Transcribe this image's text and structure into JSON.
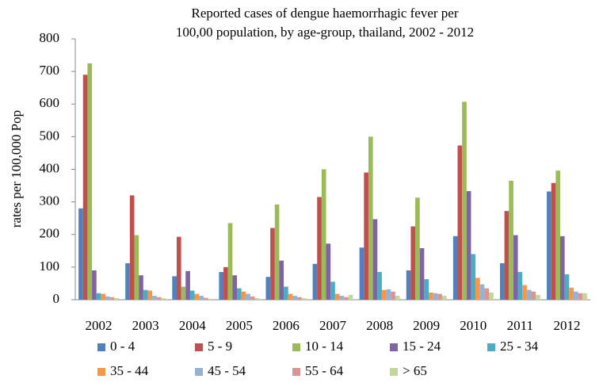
{
  "chart_data": {
    "type": "bar",
    "title": [
      "Reported cases of dengue haemorrhagic fever per",
      "100,00 population, by age-group, thailand, 2002 - 2012"
    ],
    "ylabel": "rates per 100,000 Pop",
    "categories": [
      "2002",
      "2003",
      "2004",
      "2005",
      "2006",
      "2007",
      "2008",
      "2009",
      "2010",
      "2011",
      "2012"
    ],
    "ylim": [
      0,
      800
    ],
    "yticks": [
      0,
      100,
      200,
      300,
      400,
      500,
      600,
      700,
      800
    ],
    "grid": false,
    "legend": "bottom",
    "series": [
      {
        "name": "0 - 4",
        "color": "#4f81bd",
        "values": [
          280,
          112,
          72,
          85,
          70,
          110,
          160,
          90,
          195,
          112,
          332
        ]
      },
      {
        "name": "5 - 9",
        "color": "#c0504d",
        "values": [
          690,
          320,
          193,
          100,
          220,
          315,
          390,
          225,
          473,
          272,
          358
        ]
      },
      {
        "name": "10 - 14",
        "color": "#9bbb59",
        "values": [
          725,
          198,
          40,
          235,
          292,
          400,
          500,
          313,
          607,
          365,
          396
        ]
      },
      {
        "name": "15 - 24",
        "color": "#8064a2",
        "values": [
          90,
          75,
          88,
          75,
          120,
          172,
          247,
          158,
          333,
          198,
          195
        ]
      },
      {
        "name": "25 - 34",
        "color": "#4bacc6",
        "values": [
          20,
          30,
          28,
          35,
          40,
          55,
          85,
          63,
          140,
          85,
          78
        ]
      },
      {
        "name": "35 - 44",
        "color": "#f79646",
        "values": [
          18,
          28,
          18,
          25,
          18,
          18,
          30,
          22,
          67,
          45,
          37
        ]
      },
      {
        "name": "45 - 54",
        "color": "#95b3d7",
        "values": [
          10,
          12,
          12,
          18,
          12,
          12,
          32,
          20,
          47,
          30,
          25
        ]
      },
      {
        "name": "55 - 64",
        "color": "#da9694",
        "values": [
          8,
          8,
          6,
          10,
          8,
          8,
          25,
          18,
          35,
          25,
          20
        ]
      },
      {
        "name": "> 65",
        "color": "#c3d69b",
        "values": [
          5,
          5,
          3,
          5,
          5,
          15,
          12,
          12,
          22,
          15,
          20
        ]
      }
    ]
  }
}
